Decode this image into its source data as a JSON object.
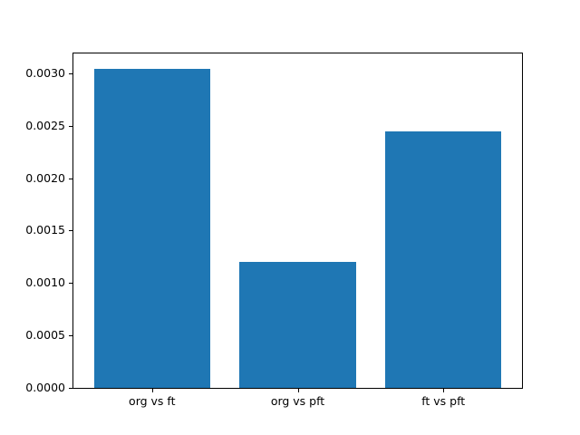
{
  "chart_data": {
    "type": "bar",
    "categories": [
      "org vs ft",
      "org vs pft",
      "ft vs pft"
    ],
    "values": [
      0.00304,
      0.0012,
      0.00245
    ],
    "title": "",
    "xlabel": "",
    "ylabel": "",
    "ylim": [
      0,
      0.00319
    ],
    "yticks": [
      0.0,
      0.0005,
      0.001,
      0.0015,
      0.002,
      0.0025,
      0.003
    ],
    "ytick_labels": [
      "0.0000",
      "0.0005",
      "0.0010",
      "0.0015",
      "0.0020",
      "0.0025",
      "0.0030"
    ],
    "bar_color": "#1f77b4",
    "spine_color": "#000000",
    "text_color": "#000000",
    "background_color": "#ffffff",
    "grid": false,
    "legend": null
  }
}
